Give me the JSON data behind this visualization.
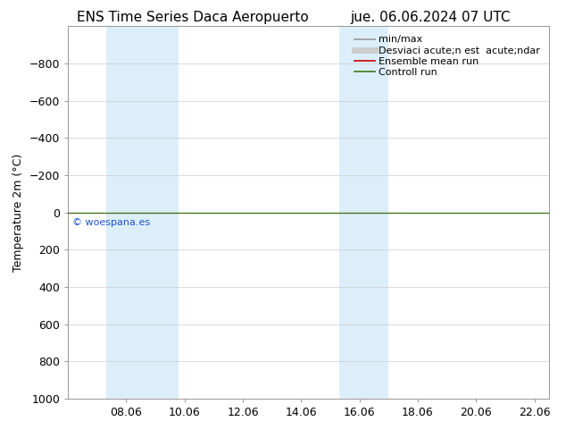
{
  "title_left": "ENS Time Series Daca Aeropuerto",
  "title_right": "jue. 06.06.2024 07 UTC",
  "ylabel": "Temperature 2m (°C)",
  "xlim": [
    6.0,
    22.5
  ],
  "ylim": [
    -1000,
    1000
  ],
  "yticks": [
    -800,
    -600,
    -400,
    -200,
    0,
    200,
    400,
    600,
    800,
    1000
  ],
  "xticks": [
    8.0,
    10.0,
    12.0,
    14.0,
    16.0,
    18.0,
    20.0,
    22.0
  ],
  "xticklabels": [
    "08.06",
    "10.06",
    "12.06",
    "14.06",
    "16.06",
    "18.06",
    "20.06",
    "22.06"
  ],
  "shaded_bands": [
    [
      7.3,
      8.0
    ],
    [
      8.0,
      9.8
    ],
    [
      15.3,
      16.0
    ],
    [
      16.0,
      17.0
    ]
  ],
  "shaded_color": "#dceef9",
  "control_run_y": 0,
  "control_run_color": "#3a7a1a",
  "ensemble_mean_color": "#cc0000",
  "watermark": "© woespana.es",
  "watermark_color": "#1a55cc",
  "legend_entries": [
    "min/max",
    "Desviaci acute;n est  acute;ndar",
    "Ensemble mean run",
    "Controll run"
  ],
  "background_color": "#ffffff",
  "grid_color": "#cccccc",
  "font_size_title": 11,
  "font_size_axis": 9,
  "font_size_legend": 8,
  "font_size_watermark": 8
}
